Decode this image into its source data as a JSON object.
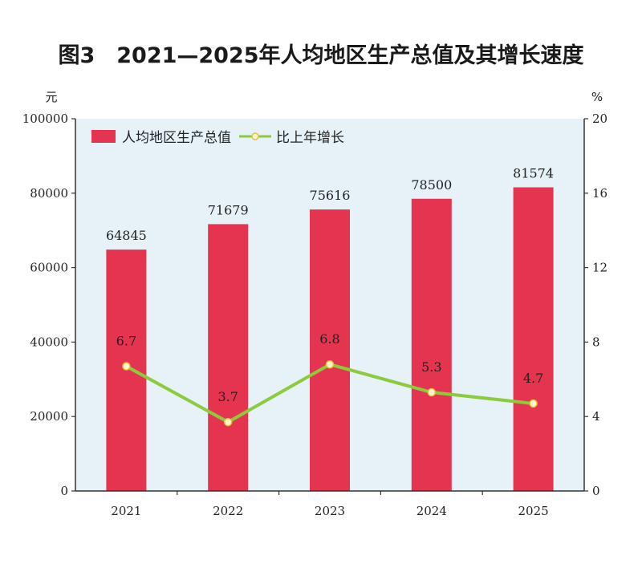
{
  "chart_data": {
    "type": "bar",
    "title": "图3　2021—2025年人均地区生产总值及其增长速度",
    "categories": [
      "2021",
      "2022",
      "2023",
      "2024",
      "2025"
    ],
    "series": [
      {
        "name": "人均地区生产总值",
        "type": "bar",
        "axis": "left",
        "values": [
          64845,
          71679,
          75616,
          78500,
          81574
        ],
        "labels": [
          "64845",
          "71679",
          "75616",
          "78500",
          "81574"
        ]
      },
      {
        "name": "比上年增长",
        "type": "line",
        "axis": "right",
        "values": [
          6.7,
          3.7,
          6.8,
          5.3,
          4.7
        ],
        "labels": [
          "6.7",
          "3.7",
          "6.8",
          "5.3",
          "4.7"
        ]
      }
    ],
    "y_left": {
      "unit": "元",
      "range": [
        0,
        100000
      ],
      "ticks": [
        "0",
        "20000",
        "40000",
        "60000",
        "80000",
        "100000"
      ]
    },
    "y_right": {
      "unit": "%",
      "range": [
        0,
        20
      ],
      "ticks": [
        "0",
        "4",
        "8",
        "12",
        "16",
        "20"
      ]
    },
    "grid": false,
    "legend_position": "top-left",
    "colors": {
      "bar": "#e5344f",
      "line": "#8ccb3c",
      "marker_fill": "#fff6cc",
      "marker_stroke": "#e2c440",
      "plot_background": "#e6f2f8",
      "axis": "#333333"
    }
  }
}
